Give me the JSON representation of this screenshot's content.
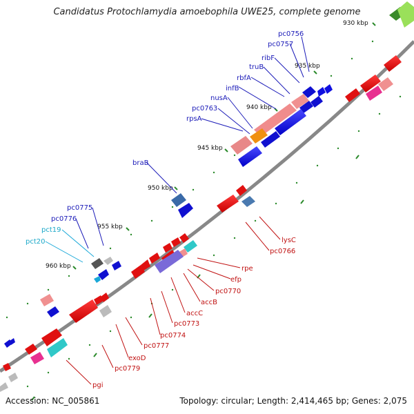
{
  "title": "Candidatus Protochlamydia amoebophila UWE25, complete genome",
  "footer": {
    "accession": "Accession: NC_005861",
    "summary": "Topology: circular; Length: 2,414,465 bp; Genes: 2,075"
  },
  "ticks": [
    {
      "label": "930 kbp"
    },
    {
      "label": "935 kbp"
    },
    {
      "label": "940 kbp"
    },
    {
      "label": "945 kbp"
    },
    {
      "label": "950 kbp"
    },
    {
      "label": "955 kbp"
    },
    {
      "label": "960 kbp"
    }
  ],
  "genes_top": [
    {
      "label": "pc0756"
    },
    {
      "label": "pc0757"
    },
    {
      "label": "ribF"
    },
    {
      "label": "truB"
    },
    {
      "label": "rbfA"
    },
    {
      "label": "infB"
    },
    {
      "label": "nusA"
    },
    {
      "label": "pc0763"
    },
    {
      "label": "rpsA"
    },
    {
      "label": "braB"
    },
    {
      "label": "pc0775"
    },
    {
      "label": "pc0776"
    },
    {
      "label": "pct19"
    },
    {
      "label": "pct20"
    }
  ],
  "genes_bottom": [
    {
      "label": "lysC"
    },
    {
      "label": "pc0766"
    },
    {
      "label": "rpe"
    },
    {
      "label": "efp"
    },
    {
      "label": "pc0770"
    },
    {
      "label": "accB"
    },
    {
      "label": "accC"
    },
    {
      "label": "pc0773"
    },
    {
      "label": "pc0774"
    },
    {
      "label": "pc0777"
    },
    {
      "label": "exoD"
    },
    {
      "label": "pc0779"
    },
    {
      "label": "pgi"
    }
  ],
  "colors": {
    "backbone": "#808080",
    "forward_gene": "#0000e0",
    "reverse_gene": "#e00000",
    "tick_dots": "#2a8a2a"
  }
}
